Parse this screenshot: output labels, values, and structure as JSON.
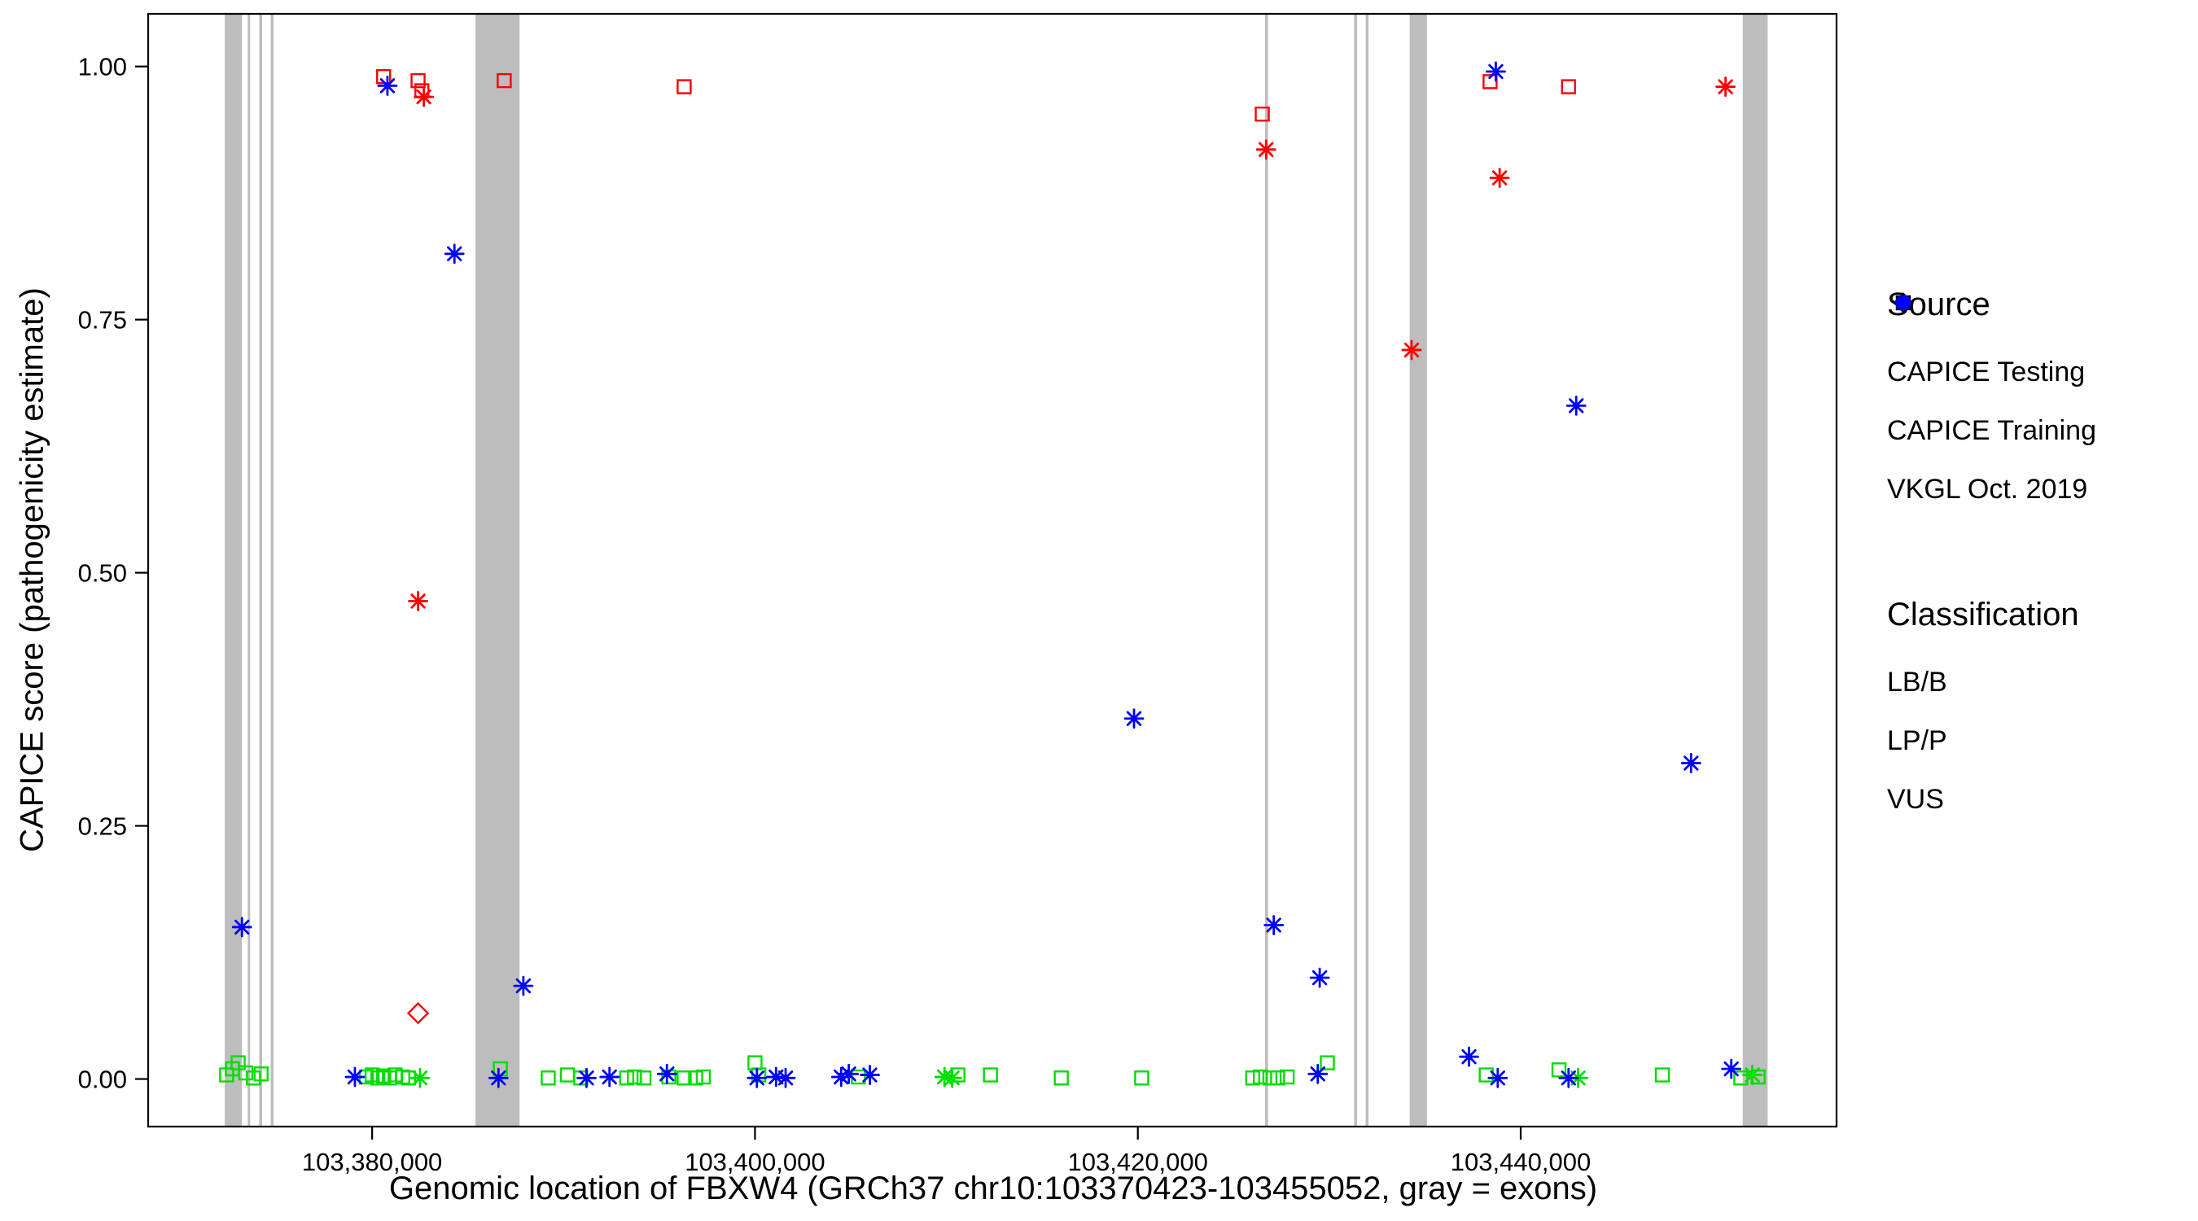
{
  "axes": {
    "x_label": "Genomic location of FBXW4 (GRCh37 chr10:103370423-103455052, gray = exons)",
    "y_label": "CAPICE score (pathogenicity estimate)",
    "x_ticks": [
      {
        "value": 103380000,
        "label": "103,380,000"
      },
      {
        "value": 103400000,
        "label": "103,400,000"
      },
      {
        "value": 103420000,
        "label": "103,420,000"
      },
      {
        "value": 103440000,
        "label": "103,440,000"
      }
    ],
    "y_ticks": [
      {
        "value": 0.0,
        "label": "0.00"
      },
      {
        "value": 0.25,
        "label": "0.25"
      },
      {
        "value": 0.5,
        "label": "0.50"
      },
      {
        "value": 0.75,
        "label": "0.75"
      },
      {
        "value": 1.0,
        "label": "1.00"
      }
    ]
  },
  "legend": {
    "source": {
      "title": "Source",
      "items": [
        {
          "label": "CAPICE Testing",
          "marker": "diamond"
        },
        {
          "label": "CAPICE Training",
          "marker": "square"
        },
        {
          "label": "VKGL Oct. 2019",
          "marker": "asterisk"
        }
      ]
    },
    "classification": {
      "title": "Classification",
      "items": [
        {
          "label": "LB/B",
          "color": "#00DD00"
        },
        {
          "label": "LP/P",
          "color": "#FF0000"
        },
        {
          "label": "VUS",
          "color": "#0000FF"
        }
      ]
    }
  },
  "chart_data": {
    "type": "scatter",
    "title": "",
    "xlabel": "Genomic location of FBXW4 (GRCh37 chr10:103370423-103455052, gray = exons)",
    "ylabel": "CAPICE score (pathogenicity estimate)",
    "x_domain": [
      103368300,
      103456500
    ],
    "y_domain": [
      -0.047,
      1.052
    ],
    "grid": false,
    "legend_position": "right",
    "exon_color": "#BDBDBD",
    "colors": {
      "LB/B": "#00DD00",
      "LP/P": "#FF0000",
      "VUS": "#0000FF"
    },
    "markers": {
      "testing": "diamond",
      "training": "square",
      "vkgl": "asterisk"
    },
    "source_labels": {
      "testing": "CAPICE Testing",
      "training": "CAPICE Training",
      "vkgl": "VKGL Oct. 2019"
    },
    "exons": [
      [
        103372300,
        103373200
      ],
      [
        103373500,
        103373620
      ],
      [
        103374100,
        103374250
      ],
      [
        103374700,
        103374850
      ],
      [
        103385400,
        103387700
      ],
      [
        103426650,
        103426800
      ],
      [
        103431300,
        103431450
      ],
      [
        103431900,
        103432050
      ],
      [
        103434200,
        103435100
      ],
      [
        103451600,
        103452900
      ]
    ],
    "point_format": [
      "x",
      "y",
      "source",
      "classification"
    ],
    "points": [
      [
        103380600,
        0.99,
        "training",
        "LP/P"
      ],
      [
        103380800,
        0.981,
        "vkgl",
        "VUS"
      ],
      [
        103382400,
        0.986,
        "training",
        "LP/P"
      ],
      [
        103382600,
        0.976,
        "training",
        "LP/P"
      ],
      [
        103382700,
        0.97,
        "vkgl",
        "LP/P"
      ],
      [
        103386900,
        0.986,
        "training",
        "LP/P"
      ],
      [
        103396300,
        0.98,
        "training",
        "LP/P"
      ],
      [
        103426500,
        0.953,
        "training",
        "LP/P"
      ],
      [
        103426700,
        0.918,
        "vkgl",
        "LP/P"
      ],
      [
        103434300,
        0.72,
        "vkgl",
        "LP/P"
      ],
      [
        103438400,
        0.985,
        "training",
        "LP/P"
      ],
      [
        103438700,
        0.995,
        "vkgl",
        "VUS"
      ],
      [
        103438900,
        0.89,
        "vkgl",
        "LP/P"
      ],
      [
        103442500,
        0.98,
        "training",
        "LP/P"
      ],
      [
        103450700,
        0.98,
        "vkgl",
        "LP/P"
      ],
      [
        103384300,
        0.815,
        "vkgl",
        "VUS"
      ],
      [
        103382400,
        0.472,
        "vkgl",
        "LP/P"
      ],
      [
        103419800,
        0.356,
        "vkgl",
        "VUS"
      ],
      [
        103448900,
        0.312,
        "vkgl",
        "VUS"
      ],
      [
        103442900,
        0.665,
        "vkgl",
        "VUS"
      ],
      [
        103373200,
        0.15,
        "vkgl",
        "VUS"
      ],
      [
        103427100,
        0.152,
        "vkgl",
        "VUS"
      ],
      [
        103429500,
        0.1,
        "vkgl",
        "VUS"
      ],
      [
        103387900,
        0.092,
        "vkgl",
        "VUS"
      ],
      [
        103382400,
        0.065,
        "testing",
        "LP/P"
      ],
      [
        103437300,
        0.022,
        "vkgl",
        "VUS"
      ],
      [
        103372400,
        0.004,
        "training",
        "LB/B"
      ],
      [
        103372700,
        0.01,
        "training",
        "LB/B"
      ],
      [
        103373000,
        0.016,
        "training",
        "LB/B"
      ],
      [
        103373400,
        0.006,
        "training",
        "LB/B"
      ],
      [
        103373800,
        0.001,
        "training",
        "LB/B"
      ],
      [
        103374200,
        0.005,
        "training",
        "LB/B"
      ],
      [
        103379700,
        0.002,
        "training",
        "LB/B"
      ],
      [
        103380000,
        0.004,
        "training",
        "LB/B"
      ],
      [
        103380300,
        0.001,
        "training",
        "LB/B"
      ],
      [
        103380600,
        0.003,
        "training",
        "LB/B"
      ],
      [
        103380900,
        0.001,
        "training",
        "LB/B"
      ],
      [
        103381200,
        0.004,
        "training",
        "LB/B"
      ],
      [
        103381600,
        0.002,
        "training",
        "LB/B"
      ],
      [
        103381900,
        0.001,
        "training",
        "LB/B"
      ],
      [
        103386700,
        0.01,
        "training",
        "LB/B"
      ],
      [
        103389200,
        0.001,
        "training",
        "LB/B"
      ],
      [
        103390200,
        0.004,
        "training",
        "LB/B"
      ],
      [
        103390900,
        0.001,
        "training",
        "LB/B"
      ],
      [
        103393300,
        0.001,
        "training",
        "LB/B"
      ],
      [
        103393700,
        0.002,
        "training",
        "LB/B"
      ],
      [
        103394200,
        0.001,
        "training",
        "LB/B"
      ],
      [
        103395500,
        0.002,
        "training",
        "LB/B"
      ],
      [
        103396300,
        0.001,
        "training",
        "LB/B"
      ],
      [
        103396900,
        0.001,
        "training",
        "LB/B"
      ],
      [
        103397300,
        0.002,
        "training",
        "LB/B"
      ],
      [
        103400000,
        0.016,
        "training",
        "LB/B"
      ],
      [
        103400200,
        0.004,
        "training",
        "LB/B"
      ],
      [
        103405400,
        0.002,
        "training",
        "LB/B"
      ],
      [
        103410600,
        0.004,
        "training",
        "LB/B"
      ],
      [
        103412300,
        0.004,
        "training",
        "LB/B"
      ],
      [
        103416000,
        0.001,
        "training",
        "LB/B"
      ],
      [
        103420200,
        0.001,
        "training",
        "LB/B"
      ],
      [
        103426000,
        0.001,
        "training",
        "LB/B"
      ],
      [
        103426400,
        0.002,
        "training",
        "LB/B"
      ],
      [
        103426900,
        0.001,
        "training",
        "LB/B"
      ],
      [
        103427300,
        0.001,
        "training",
        "LB/B"
      ],
      [
        103427800,
        0.002,
        "training",
        "LB/B"
      ],
      [
        103429900,
        0.016,
        "training",
        "LB/B"
      ],
      [
        103438200,
        0.004,
        "training",
        "LB/B"
      ],
      [
        103442000,
        0.009,
        "training",
        "LB/B"
      ],
      [
        103447400,
        0.004,
        "training",
        "LB/B"
      ],
      [
        103451500,
        0.001,
        "training",
        "LB/B"
      ],
      [
        103452400,
        0.002,
        "training",
        "LB/B"
      ],
      [
        103382500,
        0.001,
        "vkgl",
        "LB/B"
      ],
      [
        103409900,
        0.002,
        "vkgl",
        "LB/B"
      ],
      [
        103410300,
        0.001,
        "vkgl",
        "LB/B"
      ],
      [
        103443000,
        0.001,
        "vkgl",
        "LB/B"
      ],
      [
        103452100,
        0.004,
        "vkgl",
        "LB/B"
      ],
      [
        103379100,
        0.002,
        "vkgl",
        "VUS"
      ],
      [
        103386600,
        0.001,
        "vkgl",
        "VUS"
      ],
      [
        103391200,
        0.001,
        "vkgl",
        "VUS"
      ],
      [
        103392400,
        0.002,
        "vkgl",
        "VUS"
      ],
      [
        103395400,
        0.005,
        "vkgl",
        "VUS"
      ],
      [
        103400100,
        0.001,
        "vkgl",
        "VUS"
      ],
      [
        103401100,
        0.002,
        "vkgl",
        "VUS"
      ],
      [
        103401600,
        0.001,
        "vkgl",
        "VUS"
      ],
      [
        103404500,
        0.002,
        "vkgl",
        "VUS"
      ],
      [
        103404900,
        0.005,
        "vkgl",
        "VUS"
      ],
      [
        103406000,
        0.004,
        "vkgl",
        "VUS"
      ],
      [
        103429400,
        0.005,
        "vkgl",
        "VUS"
      ],
      [
        103438800,
        0.001,
        "vkgl",
        "VUS"
      ],
      [
        103442500,
        0.001,
        "vkgl",
        "VUS"
      ],
      [
        103451000,
        0.01,
        "vkgl",
        "VUS"
      ]
    ]
  }
}
